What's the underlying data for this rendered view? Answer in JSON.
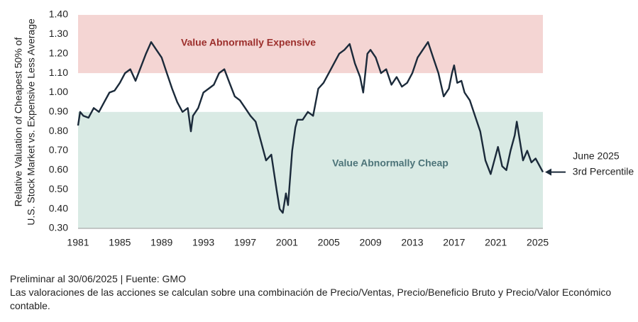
{
  "chart_data": {
    "type": "line",
    "y_label_lines": [
      "Relative Valuation of Cheapest 50% of",
      "U.S. Stock Market vs. Expensive Less Average"
    ],
    "xlim": [
      1981,
      2025.5
    ],
    "xticks": [
      1981,
      1985,
      1989,
      1993,
      1997,
      2001,
      2005,
      2009,
      2013,
      2017,
      2021,
      2025
    ],
    "ylim": [
      0.3,
      1.4
    ],
    "yticks": [
      {
        "value": 0.3,
        "label": "0.30"
      },
      {
        "value": 0.4,
        "label": "0.40"
      },
      {
        "value": 0.5,
        "label": "0.50"
      },
      {
        "value": 0.6,
        "label": "0.60"
      },
      {
        "value": 0.7,
        "label": "0.70"
      },
      {
        "value": 0.8,
        "label": "0.80"
      },
      {
        "value": 0.9,
        "label": "0.90"
      },
      {
        "value": 1.0,
        "label": "1.00"
      },
      {
        "value": 1.1,
        "label": "1.10"
      },
      {
        "value": 1.2,
        "label": "1.20"
      },
      {
        "value": 1.3,
        "label": "1.30"
      },
      {
        "value": 1.4,
        "label": "1.40"
      }
    ],
    "bands": [
      {
        "label": "Value Abnormally Expensive",
        "from": 1.1,
        "to": 1.4,
        "color": "#f4d5d3",
        "text_color": "#9c2f2c"
      },
      {
        "label": "Value Abnormally Cheap",
        "from": 0.3,
        "to": 0.9,
        "color": "#d9eae4",
        "text_color": "#4d7479"
      }
    ],
    "x": [
      1981,
      1981.2,
      1981.5,
      1982,
      1982.5,
      1983,
      1983.5,
      1984,
      1984.5,
      1985,
      1985.5,
      1986,
      1986.5,
      1987,
      1987.5,
      1988,
      1988.5,
      1989,
      1989.5,
      1990,
      1990.5,
      1991,
      1991.5,
      1991.8,
      1992,
      1992.5,
      1993,
      1993.5,
      1994,
      1994.5,
      1995,
      1995.5,
      1996,
      1996.5,
      1997,
      1997.5,
      1998,
      1998.5,
      1999,
      1999.5,
      2000,
      2000.3,
      2000.6,
      2000.9,
      2001.1,
      2001.5,
      2001.8,
      2002,
      2002.5,
      2003,
      2003.5,
      2004,
      2004.5,
      2005,
      2005.5,
      2006,
      2006.5,
      2007,
      2007.5,
      2008,
      2008.3,
      2008.7,
      2009,
      2009.5,
      2010,
      2010.5,
      2011,
      2011.5,
      2012,
      2012.5,
      2013,
      2013.5,
      2014,
      2014.5,
      2015,
      2015.5,
      2016,
      2016.5,
      2016.8,
      2017,
      2017.3,
      2017.7,
      2018,
      2018.5,
      2019,
      2019.5,
      2020,
      2020.5,
      2020.8,
      2021.2,
      2021.6,
      2022,
      2022.4,
      2022.8,
      2023,
      2023.3,
      2023.6,
      2024,
      2024.4,
      2024.8,
      2025.2,
      2025.5
    ],
    "series": [
      {
        "name": "Relative Valuation",
        "color": "#1b2a3a",
        "values": [
          0.83,
          0.9,
          0.88,
          0.87,
          0.92,
          0.9,
          0.95,
          1.0,
          1.01,
          1.05,
          1.1,
          1.12,
          1.06,
          1.13,
          1.2,
          1.26,
          1.22,
          1.18,
          1.1,
          1.02,
          0.95,
          0.9,
          0.92,
          0.8,
          0.88,
          0.92,
          1.0,
          1.02,
          1.04,
          1.1,
          1.12,
          1.05,
          0.98,
          0.96,
          0.92,
          0.88,
          0.85,
          0.75,
          0.65,
          0.68,
          0.5,
          0.4,
          0.38,
          0.48,
          0.42,
          0.7,
          0.82,
          0.86,
          0.86,
          0.9,
          0.88,
          1.02,
          1.05,
          1.1,
          1.15,
          1.2,
          1.22,
          1.25,
          1.15,
          1.08,
          1.0,
          1.2,
          1.22,
          1.18,
          1.1,
          1.12,
          1.04,
          1.08,
          1.03,
          1.05,
          1.1,
          1.18,
          1.22,
          1.26,
          1.18,
          1.1,
          0.98,
          1.02,
          1.1,
          1.14,
          1.05,
          1.06,
          1.0,
          0.96,
          0.88,
          0.8,
          0.65,
          0.58,
          0.64,
          0.72,
          0.62,
          0.6,
          0.7,
          0.78,
          0.85,
          0.75,
          0.65,
          0.7,
          0.64,
          0.66,
          0.62,
          0.59
        ]
      }
    ],
    "annotation_lines": [
      "June 2025",
      "3rd Percentile"
    ],
    "notes": [
      "Preliminar al 30/06/2025 | Fuente: GMO",
      "Las valoraciones de las acciones se calculan sobre una combinación de Precio/Ventas, Precio/Beneficio Bruto y Precio/Valor Económico contable."
    ]
  }
}
